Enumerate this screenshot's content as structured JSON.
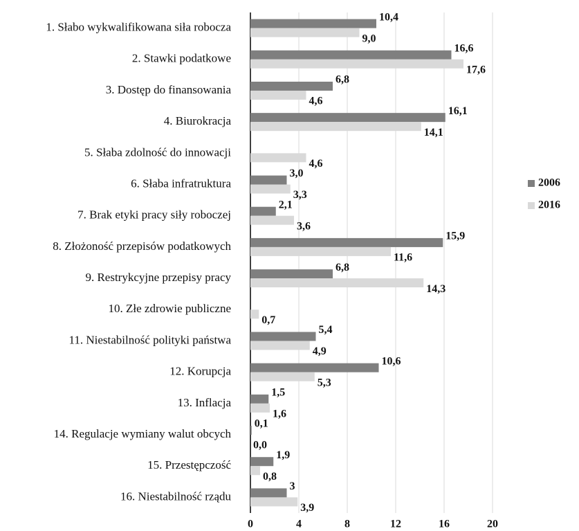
{
  "chart_data": {
    "type": "bar",
    "orientation": "horizontal",
    "categories": [
      "1. Słabo wykwalifikowana siła robocza",
      "2. Stawki podatkowe",
      "3. Dostęp do finansowania",
      "4. Biurokracja",
      "5. Słaba zdolność do innowacji",
      "6. Słaba infratruktura",
      "7. Brak etyki pracy siły roboczej",
      "8. Złożoność przepisów podatkowych",
      "9. Restrykcyjne przepisy pracy",
      "10. Złe zdrowie publiczne",
      "11. Niestabilność polityki państwa",
      "12. Korupcja",
      "13. Inflacja",
      "14. Regulacje wymiany walut obcych",
      "15. Przestępczość",
      "16. Niestabilność rządu"
    ],
    "series": [
      {
        "name": "2006",
        "color": "#7f7f7f",
        "values": [
          10.4,
          16.6,
          6.8,
          16.1,
          null,
          3.0,
          2.1,
          15.9,
          6.8,
          null,
          5.4,
          10.6,
          1.5,
          0.1,
          1.9,
          3
        ],
        "value_labels": [
          "10,4",
          "16,6",
          "6,8",
          "16,1",
          null,
          "3,0",
          "2,1",
          "15,9",
          "6,8",
          null,
          "5,4",
          "10,6",
          "1,5",
          "0,1",
          "1,9",
          "3"
        ]
      },
      {
        "name": "2016",
        "color": "#d9d9d9",
        "values": [
          9.0,
          17.6,
          4.6,
          14.1,
          4.6,
          3.3,
          3.6,
          11.6,
          14.3,
          0.7,
          4.9,
          5.3,
          1.6,
          0.0,
          0.8,
          3.9
        ],
        "value_labels": [
          "9,0",
          "17,6",
          "4,6",
          "14,1",
          "4,6",
          "3,3",
          "3,6",
          "11,6",
          "14,3",
          "0,7",
          "4,9",
          "5,3",
          "1,6",
          "0,0",
          "0,8",
          "3,9"
        ]
      }
    ],
    "xlim": [
      0,
      20
    ],
    "xticks": [
      0,
      4,
      8,
      12,
      16,
      20
    ],
    "grid": true,
    "legend": "right"
  }
}
